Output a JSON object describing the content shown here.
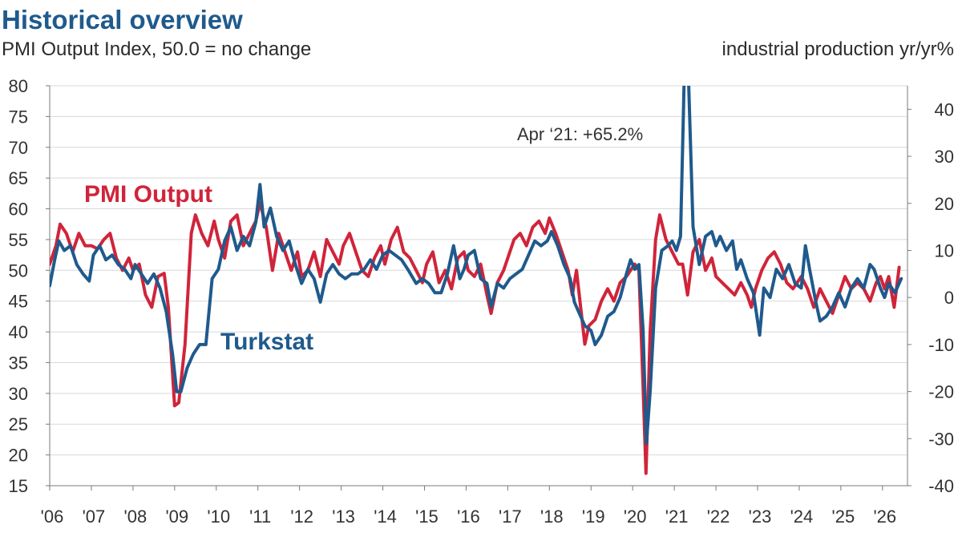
{
  "header": {
    "title": "Historical overview",
    "subtitle": "PMI Output Index, 50.0 = no change",
    "right_axis_title": "industrial production yr/yr%"
  },
  "colors": {
    "pmi": "#d0243a",
    "turkstat": "#1f5a8c",
    "grid": "#d8d8d8",
    "axis": "#7a7a7a"
  },
  "chart_data": {
    "type": "line",
    "grid": true,
    "left_axis": {
      "ylim": [
        15,
        80
      ],
      "ticks": [
        "15",
        "20",
        "25",
        "30",
        "35",
        "40",
        "45",
        "50",
        "55",
        "60",
        "65",
        "70",
        "75",
        "80"
      ]
    },
    "right_axis": {
      "ylim": [
        -40,
        45
      ],
      "ticks": [
        "-40",
        "-30",
        "-20",
        "-10",
        "0",
        "10",
        "20",
        "30",
        "40"
      ]
    },
    "x_axis": {
      "range": [
        2006,
        2026.6
      ],
      "tick_labels": [
        "'06",
        "'07",
        "'08",
        "'09",
        "'10",
        "'11",
        "'12",
        "'13",
        "'14",
        "'15",
        "'16",
        "'17",
        "'18",
        "'19",
        "'20",
        "'21",
        "'22",
        "'23",
        "'24",
        "'25",
        "'26"
      ]
    },
    "annotation": {
      "text": "Apr ‘21: +65.2%",
      "x": 2021.25
    },
    "series": [
      {
        "name": "PMI Output",
        "axis": "left",
        "points": [
          [
            2006.0,
            51
          ],
          [
            2006.15,
            54
          ],
          [
            2006.25,
            57.5
          ],
          [
            2006.4,
            56
          ],
          [
            2006.55,
            53
          ],
          [
            2006.7,
            56
          ],
          [
            2006.85,
            54
          ],
          [
            2007.0,
            54
          ],
          [
            2007.15,
            53.5
          ],
          [
            2007.3,
            55
          ],
          [
            2007.45,
            56
          ],
          [
            2007.6,
            52
          ],
          [
            2007.75,
            50
          ],
          [
            2007.9,
            52
          ],
          [
            2008.0,
            50
          ],
          [
            2008.15,
            51
          ],
          [
            2008.3,
            46
          ],
          [
            2008.45,
            44
          ],
          [
            2008.6,
            49
          ],
          [
            2008.75,
            49.5
          ],
          [
            2008.85,
            44
          ],
          [
            2009.0,
            28
          ],
          [
            2009.1,
            28.5
          ],
          [
            2009.25,
            38
          ],
          [
            2009.4,
            56
          ],
          [
            2009.5,
            59
          ],
          [
            2009.65,
            56
          ],
          [
            2009.8,
            54
          ],
          [
            2009.95,
            58
          ],
          [
            2010.05,
            55
          ],
          [
            2010.2,
            52
          ],
          [
            2010.35,
            58
          ],
          [
            2010.5,
            59
          ],
          [
            2010.65,
            54
          ],
          [
            2010.8,
            56
          ],
          [
            2010.95,
            58
          ],
          [
            2011.05,
            61
          ],
          [
            2011.2,
            57
          ],
          [
            2011.35,
            50
          ],
          [
            2011.5,
            56
          ],
          [
            2011.65,
            53
          ],
          [
            2011.8,
            50
          ],
          [
            2011.95,
            53
          ],
          [
            2012.05,
            49
          ],
          [
            2012.2,
            50
          ],
          [
            2012.35,
            53
          ],
          [
            2012.5,
            49
          ],
          [
            2012.65,
            55
          ],
          [
            2012.8,
            53
          ],
          [
            2012.95,
            51
          ],
          [
            2013.05,
            54
          ],
          [
            2013.2,
            56
          ],
          [
            2013.35,
            53
          ],
          [
            2013.5,
            50
          ],
          [
            2013.65,
            49
          ],
          [
            2013.8,
            52
          ],
          [
            2013.95,
            54
          ],
          [
            2014.05,
            51
          ],
          [
            2014.2,
            55
          ],
          [
            2014.35,
            57
          ],
          [
            2014.5,
            53
          ],
          [
            2014.65,
            52
          ],
          [
            2014.8,
            50
          ],
          [
            2014.95,
            48
          ],
          [
            2015.05,
            51
          ],
          [
            2015.2,
            53
          ],
          [
            2015.35,
            48
          ],
          [
            2015.5,
            50
          ],
          [
            2015.65,
            47
          ],
          [
            2015.8,
            52
          ],
          [
            2015.95,
            53
          ],
          [
            2016.05,
            50
          ],
          [
            2016.2,
            49
          ],
          [
            2016.35,
            51
          ],
          [
            2016.5,
            46
          ],
          [
            2016.6,
            43
          ],
          [
            2016.75,
            48
          ],
          [
            2016.9,
            50
          ],
          [
            2017.0,
            52
          ],
          [
            2017.15,
            55
          ],
          [
            2017.3,
            56
          ],
          [
            2017.45,
            54
          ],
          [
            2017.6,
            57
          ],
          [
            2017.75,
            58
          ],
          [
            2017.9,
            56
          ],
          [
            2018.0,
            58.5
          ],
          [
            2018.15,
            56
          ],
          [
            2018.3,
            53
          ],
          [
            2018.45,
            50
          ],
          [
            2018.55,
            46
          ],
          [
            2018.65,
            50
          ],
          [
            2018.75,
            44
          ],
          [
            2018.85,
            38
          ],
          [
            2018.95,
            41
          ],
          [
            2019.1,
            42
          ],
          [
            2019.25,
            45
          ],
          [
            2019.4,
            47
          ],
          [
            2019.55,
            45
          ],
          [
            2019.7,
            48
          ],
          [
            2019.85,
            49
          ],
          [
            2019.95,
            50
          ],
          [
            2020.05,
            51
          ],
          [
            2020.15,
            50
          ],
          [
            2020.25,
            31
          ],
          [
            2020.32,
            17
          ],
          [
            2020.42,
            40
          ],
          [
            2020.55,
            55
          ],
          [
            2020.65,
            59
          ],
          [
            2020.8,
            55
          ],
          [
            2020.95,
            53
          ],
          [
            2021.1,
            51
          ],
          [
            2021.2,
            51
          ],
          [
            2021.32,
            46
          ],
          [
            2021.45,
            53
          ],
          [
            2021.6,
            55
          ],
          [
            2021.75,
            50
          ],
          [
            2021.9,
            52
          ],
          [
            2022.0,
            49
          ],
          [
            2022.15,
            48
          ],
          [
            2022.3,
            47
          ],
          [
            2022.45,
            46
          ],
          [
            2022.6,
            48
          ],
          [
            2022.75,
            46
          ],
          [
            2022.85,
            44
          ],
          [
            2022.95,
            47
          ],
          [
            2023.1,
            50
          ],
          [
            2023.25,
            52
          ],
          [
            2023.4,
            53
          ],
          [
            2023.55,
            51
          ],
          [
            2023.7,
            48
          ],
          [
            2023.85,
            47
          ],
          [
            2023.95,
            48
          ],
          [
            2024.05,
            49
          ],
          [
            2024.2,
            47
          ],
          [
            2024.35,
            44
          ],
          [
            2024.5,
            47
          ],
          [
            2024.65,
            45
          ],
          [
            2024.8,
            43
          ],
          [
            2024.95,
            46
          ],
          [
            2025.1,
            49
          ],
          [
            2025.25,
            47
          ],
          [
            2025.4,
            48
          ],
          [
            2025.55,
            47
          ],
          [
            2025.7,
            45
          ],
          [
            2025.85,
            48
          ],
          [
            2025.95,
            49
          ],
          [
            2026.05,
            47
          ],
          [
            2026.15,
            49
          ],
          [
            2026.28,
            44
          ],
          [
            2026.4,
            50.5
          ]
        ]
      },
      {
        "name": "Turkstat",
        "axis": "right",
        "points": [
          [
            2006.0,
            2.5
          ],
          [
            2006.12,
            8
          ],
          [
            2006.22,
            12
          ],
          [
            2006.35,
            10
          ],
          [
            2006.5,
            11
          ],
          [
            2006.65,
            7
          ],
          [
            2006.8,
            5
          ],
          [
            2006.95,
            3.5
          ],
          [
            2007.05,
            9
          ],
          [
            2007.2,
            11
          ],
          [
            2007.35,
            8
          ],
          [
            2007.5,
            9
          ],
          [
            2007.65,
            7
          ],
          [
            2007.8,
            6
          ],
          [
            2007.95,
            4
          ],
          [
            2008.05,
            7
          ],
          [
            2008.2,
            5
          ],
          [
            2008.35,
            3
          ],
          [
            2008.5,
            5
          ],
          [
            2008.65,
            2
          ],
          [
            2008.8,
            -3
          ],
          [
            2008.95,
            -12
          ],
          [
            2009.05,
            -20
          ],
          [
            2009.15,
            -20
          ],
          [
            2009.3,
            -15
          ],
          [
            2009.45,
            -12
          ],
          [
            2009.6,
            -10
          ],
          [
            2009.75,
            -10
          ],
          [
            2009.9,
            4
          ],
          [
            2010.05,
            6
          ],
          [
            2010.2,
            12
          ],
          [
            2010.35,
            15
          ],
          [
            2010.5,
            10
          ],
          [
            2010.65,
            13
          ],
          [
            2010.8,
            11
          ],
          [
            2010.95,
            16
          ],
          [
            2011.05,
            24
          ],
          [
            2011.15,
            15
          ],
          [
            2011.3,
            19
          ],
          [
            2011.45,
            13
          ],
          [
            2011.6,
            10
          ],
          [
            2011.75,
            12
          ],
          [
            2011.9,
            7
          ],
          [
            2012.05,
            3
          ],
          [
            2012.2,
            6
          ],
          [
            2012.35,
            4
          ],
          [
            2012.5,
            -1
          ],
          [
            2012.65,
            5
          ],
          [
            2012.8,
            7
          ],
          [
            2012.95,
            5
          ],
          [
            2013.1,
            4
          ],
          [
            2013.25,
            5
          ],
          [
            2013.4,
            5
          ],
          [
            2013.55,
            6
          ],
          [
            2013.7,
            8
          ],
          [
            2013.85,
            6
          ],
          [
            2014.0,
            9
          ],
          [
            2014.15,
            10
          ],
          [
            2014.3,
            9
          ],
          [
            2014.45,
            8
          ],
          [
            2014.6,
            6
          ],
          [
            2014.8,
            3
          ],
          [
            2014.95,
            4
          ],
          [
            2015.1,
            3
          ],
          [
            2015.25,
            1
          ],
          [
            2015.4,
            1
          ],
          [
            2015.55,
            5
          ],
          [
            2015.7,
            11
          ],
          [
            2015.85,
            4
          ],
          [
            2015.95,
            6
          ],
          [
            2016.05,
            9
          ],
          [
            2016.2,
            10
          ],
          [
            2016.35,
            4
          ],
          [
            2016.5,
            3
          ],
          [
            2016.6,
            -2
          ],
          [
            2016.75,
            3
          ],
          [
            2016.9,
            2
          ],
          [
            2017.05,
            4
          ],
          [
            2017.2,
            5
          ],
          [
            2017.35,
            6
          ],
          [
            2017.5,
            9
          ],
          [
            2017.65,
            12
          ],
          [
            2017.8,
            11
          ],
          [
            2017.95,
            12
          ],
          [
            2018.05,
            14
          ],
          [
            2018.2,
            11
          ],
          [
            2018.35,
            7
          ],
          [
            2018.5,
            4
          ],
          [
            2018.6,
            -1
          ],
          [
            2018.75,
            -4
          ],
          [
            2018.85,
            -6
          ],
          [
            2019.0,
            -7
          ],
          [
            2019.1,
            -10
          ],
          [
            2019.25,
            -8
          ],
          [
            2019.4,
            -4
          ],
          [
            2019.55,
            -3
          ],
          [
            2019.7,
            0
          ],
          [
            2019.85,
            5
          ],
          [
            2019.95,
            8
          ],
          [
            2020.05,
            6
          ],
          [
            2020.15,
            7
          ],
          [
            2020.25,
            -7
          ],
          [
            2020.33,
            -31
          ],
          [
            2020.42,
            -20
          ],
          [
            2020.55,
            2
          ],
          [
            2020.7,
            10
          ],
          [
            2020.85,
            11
          ],
          [
            2020.95,
            12
          ],
          [
            2021.05,
            10
          ],
          [
            2021.15,
            13
          ],
          [
            2021.22,
            40
          ],
          [
            2021.28,
            65.2
          ],
          [
            2021.35,
            44
          ],
          [
            2021.45,
            15
          ],
          [
            2021.6,
            7
          ],
          [
            2021.75,
            13
          ],
          [
            2021.9,
            14
          ],
          [
            2022.0,
            11
          ],
          [
            2022.1,
            13
          ],
          [
            2022.25,
            10
          ],
          [
            2022.4,
            12
          ],
          [
            2022.5,
            6
          ],
          [
            2022.6,
            8
          ],
          [
            2022.75,
            4
          ],
          [
            2022.9,
            1
          ],
          [
            2023.05,
            -8
          ],
          [
            2023.15,
            2
          ],
          [
            2023.3,
            0
          ],
          [
            2023.45,
            6
          ],
          [
            2023.6,
            4
          ],
          [
            2023.75,
            7
          ],
          [
            2023.9,
            3
          ],
          [
            2024.05,
            2
          ],
          [
            2024.15,
            11
          ],
          [
            2024.25,
            6
          ],
          [
            2024.4,
            -1
          ],
          [
            2024.5,
            -5
          ],
          [
            2024.65,
            -4
          ],
          [
            2024.8,
            -2
          ],
          [
            2024.95,
            1
          ],
          [
            2025.1,
            -2
          ],
          [
            2025.25,
            2
          ],
          [
            2025.4,
            4
          ],
          [
            2025.55,
            2
          ],
          [
            2025.7,
            7
          ],
          [
            2025.8,
            6
          ],
          [
            2025.95,
            2
          ],
          [
            2026.05,
            0
          ],
          [
            2026.15,
            3
          ],
          [
            2026.3,
            1
          ],
          [
            2026.45,
            4
          ]
        ]
      }
    ]
  }
}
